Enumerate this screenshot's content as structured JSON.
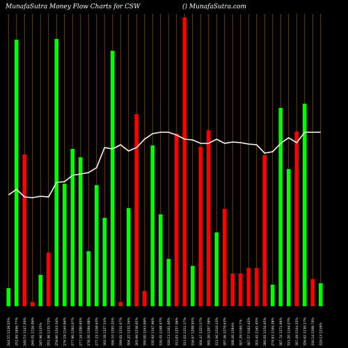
{
  "chart_data": {
    "type": "bar",
    "title": "MunafaSutra  Money Flow  Charts for CSW",
    "subtitle": "() MunafaSutra.com",
    "categories": [
      "244.15 1139.25%",
      "251.89 1696.77%",
      "246.53 1147.20%",
      "246.01 1126.96%",
      "245.96 1135%",
      "251.96 1135.72%",
      "259.80 1243.34%",
      "276.19 1144.94%",
      "277.96 1260.07%",
      "277.24 1290.85%",
      "278.20 1269.08%",
      "277.23 1158.43%",
      "302.18 1227.33%",
      "306.10 1295.25%",
      "299.61 1231.67%",
      "304.22 1232.36%",
      "302.99 1236.65%",
      "300.00 1243.69%",
      "316.92 1147.96%",
      "316.41 1168.47%",
      "319.13 1161.60%",
      "313.03 1237.06%",
      "311.02 1211.17%",
      "316.67 1208.93%",
      "304.47 1215.57%",
      "305.20 1207.38%",
      "311.94 1210.33%",
      "307.06 1270.43%",
      "308.40 1184%",
      "307.29 1160.7%",
      "307.57 1163.42%",
      "303.42 1161.43%",
      "286.61 1156.45%",
      "274.83 1169.28%",
      "307.74 1171.96%",
      "311.20 1144.27%",
      "307.49 1144.32%",
      "326.62 1130.17%",
      "316.14 1208.70%",
      "319.13 1118%"
    ],
    "values": [
      26,
      383,
      218,
      6,
      45,
      77,
      384,
      176,
      226,
      214,
      79,
      174,
      127,
      367,
      6,
      141,
      276,
      22,
      231,
      132,
      68,
      248,
      415,
      58,
      229,
      253,
      106,
      140,
      47,
      47,
      55,
      55,
      217,
      31,
      285,
      197,
      251,
      291,
      39,
      33
    ],
    "colors": [
      "#00ff00",
      "#00ff00",
      "#ff0000",
      "#ff0000",
      "#00ff00",
      "#ff0000",
      "#00ff00",
      "#00ff00",
      "#00ff00",
      "#00ff00",
      "#00ff00",
      "#00ff00",
      "#00ff00",
      "#00ff00",
      "#ff0000",
      "#00ff00",
      "#ff0000",
      "#ff0000",
      "#00ff00",
      "#00ff00",
      "#00ff00",
      "#ff0000",
      "#ff0000",
      "#00ff00",
      "#ff0000",
      "#ff0000",
      "#00ff00",
      "#ff0000",
      "#ff0000",
      "#ff0000",
      "#ff0000",
      "#ff0000",
      "#ff0000",
      "#00ff00",
      "#00ff00",
      "#00ff00",
      "#ff0000",
      "#00ff00",
      "#ff0000",
      "#00ff00"
    ],
    "line": {
      "color": "#ffffff",
      "values": [
        160,
        168,
        157,
        156,
        158,
        157,
        178,
        179,
        188,
        190,
        192,
        199,
        228,
        226,
        232,
        223,
        228,
        240,
        248,
        250,
        250,
        246,
        240,
        239,
        234,
        234,
        240,
        234,
        236,
        235,
        233,
        232,
        220,
        222,
        234,
        242,
        235,
        250,
        250,
        250
      ]
    },
    "ylim": [
      0,
      415
    ]
  }
}
